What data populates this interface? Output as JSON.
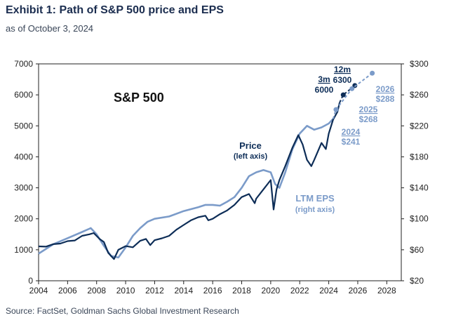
{
  "header": {
    "title": "Exhibit 1: Path of S&P 500 price and EPS",
    "subtitle": "as of October 3, 2024"
  },
  "footer": {
    "source": "Source: FactSet, Goldman Sachs Global Investment Research"
  },
  "colors": {
    "price": "#0d2d57",
    "eps": "#7b9bc9",
    "axis": "#222222"
  },
  "chart_data": {
    "type": "line",
    "title": "S&P 500",
    "x_ticks": [
      "2004",
      "2006",
      "2008",
      "2010",
      "2012",
      "2014",
      "2016",
      "2018",
      "2020",
      "2022",
      "2024",
      "2026",
      "2028"
    ],
    "xlim": [
      2004,
      2029
    ],
    "y_left_ticks": [
      "0",
      "1000",
      "2000",
      "3000",
      "4000",
      "5000",
      "6000",
      "7000"
    ],
    "ylim_left": [
      0,
      7000
    ],
    "y_right_ticks": [
      "$20",
      "$60",
      "$100",
      "$140",
      "$180",
      "$220",
      "$260",
      "$300"
    ],
    "ylim_right": [
      20,
      300
    ],
    "grid": false,
    "series": [
      {
        "name": "Price",
        "sublabel": "(left axis)",
        "axis": "left",
        "x": [
          2004.0,
          2004.5,
          2005.0,
          2005.5,
          2006.0,
          2006.5,
          2007.0,
          2007.5,
          2007.8,
          2008.2,
          2008.5,
          2008.8,
          2009.0,
          2009.2,
          2009.5,
          2010.0,
          2010.5,
          2011.0,
          2011.4,
          2011.7,
          2012.0,
          2012.5,
          2013.0,
          2013.5,
          2014.0,
          2014.5,
          2015.0,
          2015.5,
          2015.7,
          2016.0,
          2016.5,
          2017.0,
          2017.5,
          2018.0,
          2018.5,
          2018.9,
          2019.0,
          2019.5,
          2020.0,
          2020.2,
          2020.4,
          2020.6,
          2021.0,
          2021.5,
          2021.9,
          2022.2,
          2022.5,
          2022.8,
          2023.0,
          2023.5,
          2023.8,
          2024.0,
          2024.3,
          2024.6,
          2024.75
        ],
        "y": [
          1110,
          1100,
          1180,
          1200,
          1280,
          1300,
          1450,
          1500,
          1540,
          1350,
          1250,
          900,
          800,
          700,
          1000,
          1120,
          1080,
          1290,
          1350,
          1150,
          1310,
          1370,
          1450,
          1650,
          1800,
          1950,
          2050,
          2100,
          1950,
          2000,
          2150,
          2270,
          2450,
          2700,
          2800,
          2500,
          2650,
          2950,
          3250,
          2300,
          2950,
          3250,
          3700,
          4300,
          4700,
          4400,
          3900,
          3700,
          3900,
          4450,
          4250,
          4750,
          5200,
          5450,
          5750
        ]
      },
      {
        "name": "LTM EPS",
        "sublabel": "(right axis)",
        "axis": "right",
        "x": [
          2004.0,
          2005.0,
          2006.0,
          2007.0,
          2007.6,
          2008.0,
          2008.5,
          2009.0,
          2009.5,
          2010.0,
          2010.5,
          2011.0,
          2011.5,
          2012.0,
          2013.0,
          2014.0,
          2015.0,
          2015.5,
          2016.0,
          2016.5,
          2017.0,
          2017.5,
          2018.0,
          2018.5,
          2019.0,
          2019.5,
          2020.0,
          2020.3,
          2020.6,
          2021.0,
          2021.5,
          2022.0,
          2022.5,
          2023.0,
          2023.5,
          2024.0,
          2024.3
        ],
        "y": [
          55,
          67,
          75,
          83,
          88,
          80,
          65,
          52,
          50,
          63,
          78,
          88,
          96,
          100,
          103,
          110,
          115,
          118,
          118,
          117,
          122,
          128,
          140,
          155,
          160,
          163,
          160,
          145,
          140,
          160,
          190,
          210,
          220,
          215,
          218,
          223,
          229
        ]
      }
    ],
    "forecasts": {
      "price": [
        {
          "label": "3m",
          "value_label": "6000",
          "x": 2025.0,
          "y": 6000
        },
        {
          "label": "12m",
          "value_label": "6300",
          "x": 2025.8,
          "y": 6300
        }
      ],
      "eps": [
        {
          "label": "2024",
          "value_label": "$241",
          "x": 2024.5,
          "y": 241
        },
        {
          "label": "2025",
          "value_label": "$268",
          "x": 2025.6,
          "y": 268
        },
        {
          "label": "2026",
          "value_label": "$288",
          "x": 2027.0,
          "y": 288
        }
      ]
    }
  }
}
